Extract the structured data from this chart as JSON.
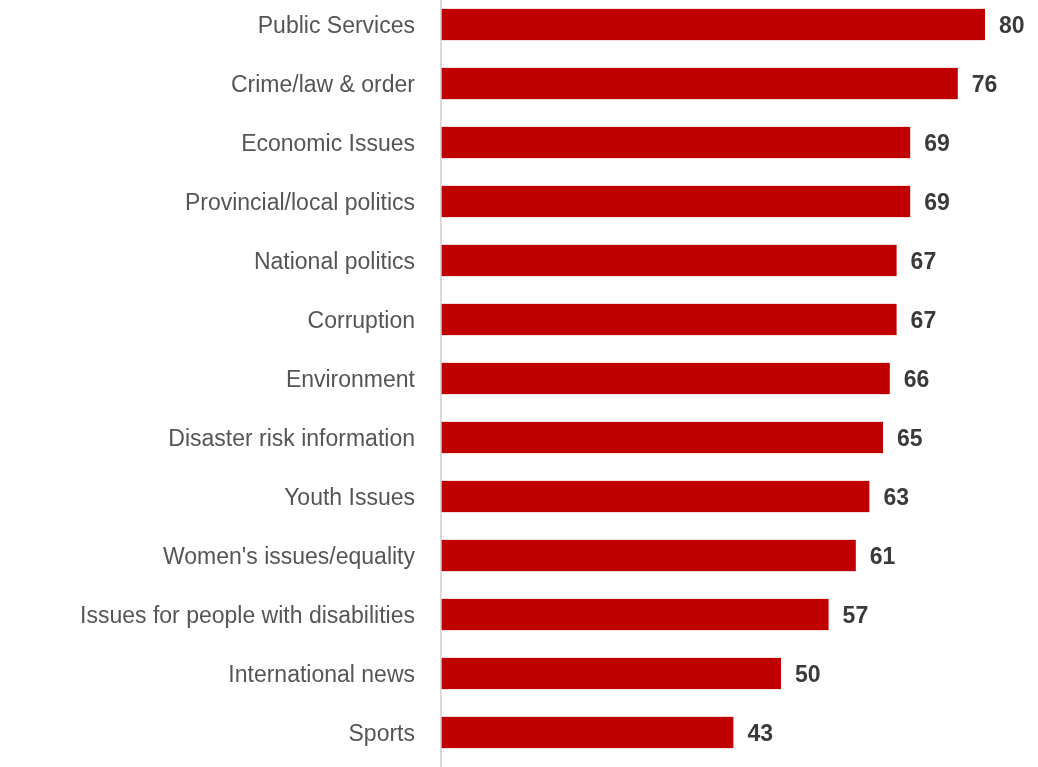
{
  "chart_data": {
    "type": "bar",
    "orientation": "horizontal",
    "categories": [
      "Public Services",
      "Crime/law & order",
      "Economic Issues",
      "Provincial/local politics",
      "National politics",
      "Corruption",
      "Environment",
      "Disaster risk information",
      "Youth Issues",
      "Women's issues/equality",
      "Issues for people with disabilities",
      "International news",
      "Sports"
    ],
    "values": [
      80,
      76,
      69,
      69,
      67,
      67,
      66,
      65,
      63,
      61,
      57,
      50,
      43
    ],
    "color": "#c00000",
    "data_labels": true
  }
}
